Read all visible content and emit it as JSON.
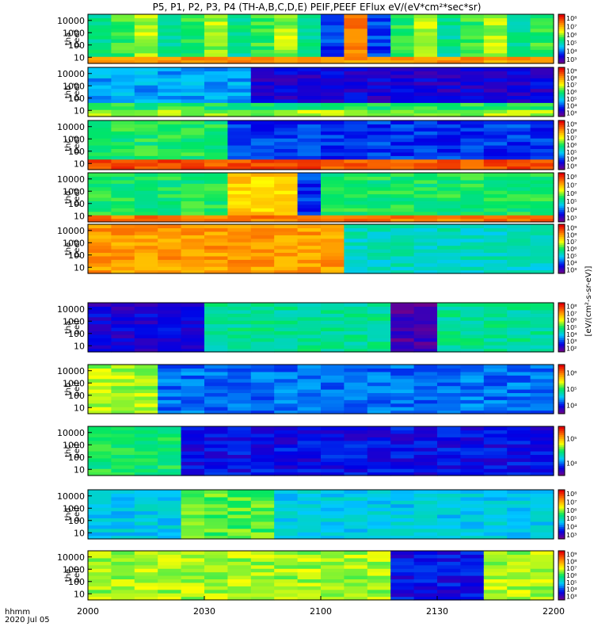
{
  "chart_data": {
    "type": "heatmap",
    "title": "P5, P1, P2, P3, P4 (TH-A,B,C,D,E) PEIF,PEEF EFlux eV/(eV*cm²*sec*sr)",
    "x_axis": {
      "label": "hhmm",
      "date": "2020 Jul 05",
      "ticks": [
        "2000",
        "2030",
        "2100",
        "2130",
        "2200"
      ],
      "range": [
        "20:00",
        "22:00"
      ]
    },
    "y_axis": {
      "scale": "log",
      "ticks": [
        "10",
        "100",
        "1000",
        "10000"
      ]
    },
    "colorbar_label": "[eV/(cm²-s-sr-eV)]",
    "panels": [
      {
        "label": [
          "tha",
          "peef"
        ],
        "probe": "tha",
        "species": "peef",
        "zmin": 3,
        "zmax": 8,
        "cbar_ticks": [
          "10³",
          "10⁴",
          "10⁵",
          "10⁶",
          "10⁷",
          "10⁸"
        ]
      },
      {
        "label": [
          "thb",
          "peef"
        ],
        "probe": "thb",
        "species": "peef",
        "zmin": 3,
        "zmax": 9,
        "cbar_ticks": [
          "10³",
          "10⁴",
          "10⁵",
          "10⁶",
          "10⁷",
          "10⁸",
          "10⁹"
        ]
      },
      {
        "label": [
          "thc",
          "peef"
        ],
        "probe": "thc",
        "species": "peef",
        "zmin": 3,
        "zmax": 9,
        "cbar_ticks": [
          "10³",
          "10⁴",
          "10⁵",
          "10⁶",
          "10⁷",
          "10⁸",
          "10⁹"
        ]
      },
      {
        "label": [
          "thd",
          "peef"
        ],
        "probe": "thd",
        "species": "peef",
        "zmin": 3,
        "zmax": 8,
        "cbar_ticks": [
          "10³",
          "10⁴",
          "10⁵",
          "10⁶",
          "10⁷",
          "10⁸"
        ]
      },
      {
        "label": [
          "the",
          "peef"
        ],
        "probe": "the",
        "species": "peef",
        "zmin": 3,
        "zmax": 9,
        "cbar_ticks": [
          "10³",
          "10⁴",
          "10⁵",
          "10⁶",
          "10⁷",
          "10⁸",
          "10⁹"
        ]
      },
      {
        "label": [
          "tha",
          "peif"
        ],
        "probe": "tha",
        "species": "peif",
        "zmin": 2,
        "zmax": 8,
        "cbar_ticks": [
          "10²",
          "10³",
          "10⁴",
          "10⁵",
          "10⁶",
          "10⁷",
          "10⁸"
        ]
      },
      {
        "label": [
          "thb",
          "peif"
        ],
        "probe": "thb",
        "species": "peif",
        "zmin": 3,
        "zmax": 7,
        "cbar_ticks": [
          "10⁴",
          "10⁵",
          "10⁶"
        ]
      },
      {
        "label": [
          "thc",
          "peif"
        ],
        "probe": "thc",
        "species": "peif",
        "zmin": 3,
        "zmax": 7,
        "cbar_ticks": [
          "10⁴",
          "10⁵"
        ]
      },
      {
        "label": [
          "thd",
          "peif"
        ],
        "probe": "thd",
        "species": "peif",
        "zmin": 3,
        "zmax": 8,
        "cbar_ticks": [
          "10³",
          "10⁴",
          "10⁵",
          "10⁶",
          "10⁷",
          "10⁸"
        ]
      },
      {
        "label": [
          "the",
          "peif"
        ],
        "probe": "the",
        "species": "peif",
        "zmin": 3,
        "zmax": 9,
        "cbar_ticks": [
          "10³",
          "10⁴",
          "10⁵",
          "10⁶",
          "10⁷",
          "10⁸",
          "10⁹"
        ]
      }
    ]
  }
}
